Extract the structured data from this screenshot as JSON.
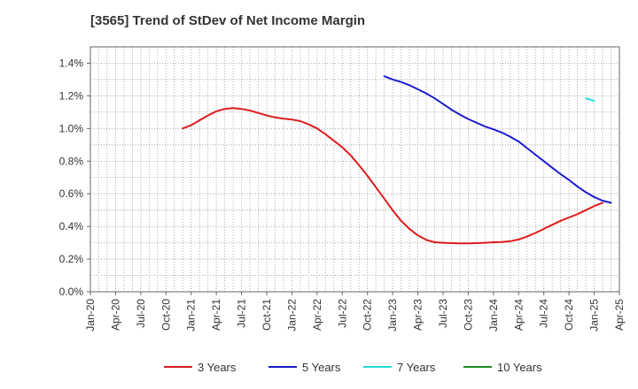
{
  "chart_data": {
    "type": "line",
    "title": "[3565]  Trend of StDev of Net Income Margin",
    "x_ticks": [
      "Jan-20",
      "Apr-20",
      "Jul-20",
      "Oct-20",
      "Jan-21",
      "Apr-21",
      "Jul-21",
      "Oct-21",
      "Jan-22",
      "Apr-22",
      "Jul-22",
      "Oct-22",
      "Jan-23",
      "Apr-23",
      "Jul-23",
      "Oct-23",
      "Jan-24",
      "Apr-24",
      "Jul-24",
      "Oct-24",
      "Jan-25",
      "Apr-25"
    ],
    "y_ticks": [
      "0.0%",
      "0.2%",
      "0.4%",
      "0.6%",
      "0.8%",
      "1.0%",
      "1.2%",
      "1.4%"
    ],
    "ylim": [
      0,
      1.5
    ],
    "y_unit": "%",
    "grid": true,
    "legend_position": "bottom",
    "series": [
      {
        "name": "3 Years",
        "color": "#dd1c1c",
        "points": [
          [
            "Dec-20",
            1.0
          ],
          [
            "Jan-21",
            1.02
          ],
          [
            "Feb-21",
            1.05
          ],
          [
            "Mar-21",
            1.08
          ],
          [
            "Apr-21",
            1.105
          ],
          [
            "May-21",
            1.12
          ],
          [
            "Jun-21",
            1.125
          ],
          [
            "Jul-21",
            1.12
          ],
          [
            "Aug-21",
            1.11
          ],
          [
            "Sep-21",
            1.095
          ],
          [
            "Oct-21",
            1.08
          ],
          [
            "Nov-21",
            1.068
          ],
          [
            "Dec-21",
            1.06
          ],
          [
            "Jan-22",
            1.055
          ],
          [
            "Feb-22",
            1.045
          ],
          [
            "Mar-22",
            1.025
          ],
          [
            "Apr-22",
            1.0
          ],
          [
            "May-22",
            0.965
          ],
          [
            "Jun-22",
            0.925
          ],
          [
            "Jul-22",
            0.885
          ],
          [
            "Aug-22",
            0.835
          ],
          [
            "Sep-22",
            0.775
          ],
          [
            "Oct-22",
            0.71
          ],
          [
            "Nov-22",
            0.64
          ],
          [
            "Dec-22",
            0.57
          ],
          [
            "Jan-23",
            0.5
          ],
          [
            "Feb-23",
            0.435
          ],
          [
            "Mar-23",
            0.385
          ],
          [
            "Apr-23",
            0.345
          ],
          [
            "May-23",
            0.318
          ],
          [
            "Jun-23",
            0.303
          ],
          [
            "Jul-23",
            0.3
          ],
          [
            "Aug-23",
            0.298
          ],
          [
            "Sep-23",
            0.297
          ],
          [
            "Oct-23",
            0.297
          ],
          [
            "Nov-23",
            0.298
          ],
          [
            "Dec-23",
            0.3
          ],
          [
            "Jan-24",
            0.303
          ],
          [
            "Feb-24",
            0.305
          ],
          [
            "Mar-24",
            0.31
          ],
          [
            "Apr-24",
            0.32
          ],
          [
            "May-24",
            0.338
          ],
          [
            "Jun-24",
            0.36
          ],
          [
            "Jul-24",
            0.385
          ],
          [
            "Aug-24",
            0.41
          ],
          [
            "Sep-24",
            0.435
          ],
          [
            "Oct-24",
            0.455
          ],
          [
            "Nov-24",
            0.475
          ],
          [
            "Dec-24",
            0.5
          ],
          [
            "Jan-25",
            0.525
          ],
          [
            "Feb-25",
            0.545
          ]
        ]
      },
      {
        "name": "5 Years",
        "color": "#1c1ccc",
        "points": [
          [
            "Dec-22",
            1.32
          ],
          [
            "Jan-23",
            1.3
          ],
          [
            "Feb-23",
            1.285
          ],
          [
            "Mar-23",
            1.265
          ],
          [
            "Apr-23",
            1.24
          ],
          [
            "May-23",
            1.215
          ],
          [
            "Jun-23",
            1.185
          ],
          [
            "Jul-23",
            1.15
          ],
          [
            "Aug-23",
            1.115
          ],
          [
            "Sep-23",
            1.085
          ],
          [
            "Oct-23",
            1.058
          ],
          [
            "Nov-23",
            1.035
          ],
          [
            "Dec-23",
            1.012
          ],
          [
            "Jan-24",
            0.995
          ],
          [
            "Feb-24",
            0.975
          ],
          [
            "Mar-24",
            0.95
          ],
          [
            "Apr-24",
            0.92
          ],
          [
            "May-24",
            0.88
          ],
          [
            "Jun-24",
            0.84
          ],
          [
            "Jul-24",
            0.8
          ],
          [
            "Aug-24",
            0.76
          ],
          [
            "Sep-24",
            0.72
          ],
          [
            "Oct-24",
            0.685
          ],
          [
            "Nov-24",
            0.645
          ],
          [
            "Dec-24",
            0.61
          ],
          [
            "Jan-25",
            0.58
          ],
          [
            "Feb-25",
            0.558
          ],
          [
            "Mar-25",
            0.545
          ]
        ]
      },
      {
        "name": "7 Years",
        "color": "#22dddd",
        "points": [
          [
            "Dec-24",
            1.185
          ],
          [
            "Jan-25",
            1.17
          ]
        ]
      },
      {
        "name": "10 Years",
        "color": "#228b22",
        "points": []
      }
    ]
  }
}
